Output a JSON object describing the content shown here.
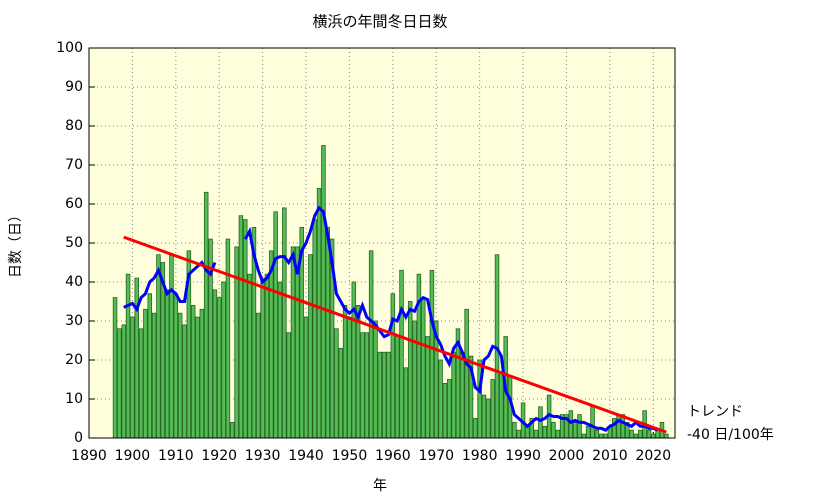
{
  "chart_data": {
    "type": "bar",
    "title": "横浜の年間冬日日数",
    "xlabel": "年",
    "ylabel": "日数（日）",
    "annotations": [
      "トレンド",
      "-40 日/100年"
    ],
    "x": [
      1896,
      1897,
      1898,
      1899,
      1900,
      1901,
      1902,
      1903,
      1904,
      1905,
      1906,
      1907,
      1908,
      1909,
      1910,
      1911,
      1912,
      1913,
      1914,
      1915,
      1916,
      1917,
      1918,
      1919,
      1920,
      1921,
      1922,
      1923,
      1924,
      1925,
      1926,
      1927,
      1928,
      1929,
      1930,
      1931,
      1932,
      1933,
      1934,
      1935,
      1936,
      1937,
      1938,
      1939,
      1940,
      1941,
      1942,
      1943,
      1944,
      1945,
      1946,
      1947,
      1948,
      1949,
      1950,
      1951,
      1952,
      1953,
      1954,
      1955,
      1956,
      1957,
      1958,
      1959,
      1960,
      1961,
      1962,
      1963,
      1964,
      1965,
      1966,
      1967,
      1968,
      1969,
      1970,
      1971,
      1972,
      1973,
      1974,
      1975,
      1976,
      1977,
      1978,
      1979,
      1980,
      1981,
      1982,
      1983,
      1984,
      1985,
      1986,
      1987,
      1988,
      1989,
      1990,
      1991,
      1992,
      1993,
      1994,
      1995,
      1996,
      1997,
      1998,
      1999,
      2000,
      2001,
      2002,
      2003,
      2004,
      2005,
      2006,
      2007,
      2008,
      2009,
      2010,
      2011,
      2012,
      2013,
      2014,
      2015,
      2016,
      2017,
      2018,
      2019,
      2020,
      2021,
      2022,
      2023
    ],
    "values": [
      36,
      28,
      29,
      42,
      31,
      41,
      28,
      33,
      37,
      32,
      47,
      45,
      38,
      47,
      37,
      32,
      29,
      48,
      34,
      31,
      33,
      63,
      51,
      38,
      36,
      40,
      51,
      4,
      49,
      57,
      56,
      42,
      54,
      32,
      41,
      42,
      48,
      58,
      40,
      59,
      27,
      49,
      49,
      54,
      31,
      47,
      56,
      64,
      75,
      54,
      51,
      28,
      23,
      34,
      31,
      40,
      34,
      27,
      27,
      48,
      30,
      22,
      22,
      22,
      37,
      26,
      43,
      18,
      35,
      30,
      42,
      36,
      26,
      43,
      30,
      20,
      14,
      15,
      22,
      28,
      22,
      33,
      21,
      5,
      20,
      11,
      10,
      15,
      47,
      17,
      26,
      16,
      4,
      2,
      9,
      3,
      5,
      2,
      8,
      3,
      11,
      4,
      2,
      6,
      6,
      7,
      4,
      6,
      1,
      3,
      8,
      2,
      1,
      1,
      3,
      5,
      6,
      6,
      4,
      2,
      1,
      2,
      7,
      2,
      1,
      2,
      4,
      1
    ],
    "color": "#55bb55",
    "series": [
      {
        "color": "#0000ff",
        "x": [
          1898,
          1899,
          1900,
          1901,
          1902,
          1903,
          1904,
          1905,
          1906,
          1907,
          1908,
          1909,
          1910,
          1911,
          1912,
          1913,
          1914,
          1915,
          1916,
          1917,
          1918,
          1919,
          1920,
          1921,
          1922,
          1923,
          1924,
          1925,
          1926,
          1927,
          1928,
          1929,
          1930,
          1931,
          1932,
          1933,
          1934,
          1935,
          1936,
          1937,
          1938,
          1939,
          1940,
          1941,
          1942,
          1943,
          1944,
          1945,
          1946,
          1947,
          1948,
          1949,
          1950,
          1951,
          1952,
          1953,
          1954,
          1955,
          1956,
          1957,
          1958,
          1959,
          1960,
          1961,
          1962,
          1963,
          1964,
          1965,
          1966,
          1967,
          1968,
          1969,
          1970,
          1971,
          1972,
          1973,
          1974,
          1975,
          1976,
          1977,
          1978,
          1979,
          1980,
          1981,
          1982,
          1983,
          1984,
          1985,
          1986,
          1987,
          1988,
          1989,
          1990,
          1991,
          1992,
          1993,
          1994,
          1995,
          1996,
          1997,
          1998,
          1999,
          2000,
          2001,
          2002,
          2003,
          2004,
          2005,
          2006,
          2007,
          2008,
          2009,
          2010,
          2011,
          2012,
          2013,
          2014,
          2015,
          2016,
          2017,
          2018,
          2019,
          2020,
          2021
        ],
        "values": [
          33.5,
          34,
          34.5,
          33,
          36,
          37,
          40,
          41,
          43,
          40,
          37,
          38,
          37,
          35,
          35,
          42,
          43,
          44,
          45,
          43,
          42,
          45,
          null,
          null,
          null,
          null,
          null,
          null,
          51,
          53,
          47,
          43,
          40,
          41,
          43,
          46,
          46.5,
          46.5,
          45,
          47,
          42,
          48,
          50,
          53,
          57,
          59,
          58,
          52,
          45,
          37,
          35,
          33,
          32,
          33,
          31,
          34,
          31,
          30,
          29,
          27.5,
          26,
          26.5,
          30.5,
          30,
          33,
          31,
          33,
          32.5,
          35,
          36,
          35.5,
          30,
          26,
          24,
          21,
          19,
          23,
          24.5,
          22,
          19,
          18,
          13,
          12,
          20,
          21,
          23.5,
          23,
          21,
          12,
          10,
          6,
          5,
          4,
          3,
          4,
          5,
          4.5,
          5,
          6,
          5.5,
          5.5,
          5,
          5,
          4,
          4.5,
          4,
          4,
          3.5,
          3,
          2.5,
          2.5,
          2,
          3,
          3.5,
          4.5,
          4,
          3.5,
          3,
          4,
          3,
          3,
          2.5,
          2.5,
          2
        ]
      },
      {
        "color": "#ff0000",
        "x": [
          1898,
          2023
        ],
        "values": [
          51.5,
          1.5
        ]
      }
    ],
    "xlim": [
      1890,
      2025
    ],
    "ylim": [
      0,
      100
    ],
    "xticks": [
      1890,
      1900,
      1910,
      1920,
      1930,
      1940,
      1950,
      1960,
      1970,
      1980,
      1990,
      2000,
      2010,
      2020
    ],
    "yticks": [
      0,
      10,
      20,
      30,
      40,
      50,
      60,
      70,
      80,
      90,
      100
    ],
    "grid": true
  }
}
